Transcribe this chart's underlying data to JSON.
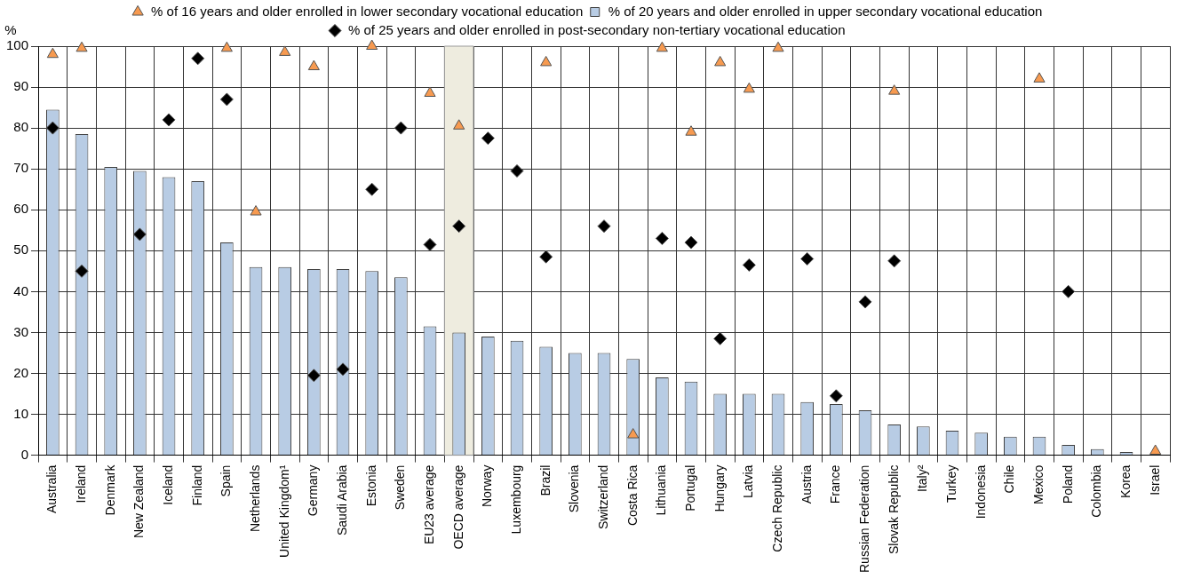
{
  "chart_data": {
    "type": "bar",
    "ylabel": "%",
    "categories": [
      "Australia",
      "Ireland",
      "Denmark",
      "New Zealand",
      "Iceland",
      "Finland",
      "Spain",
      "Netherlands",
      "United Kingdom¹",
      "Germany",
      "Saudi Arabia",
      "Estonia",
      "Sweden",
      "EU23 average",
      "OECD average",
      "Norway",
      "Luxembourg",
      "Brazil",
      "Slovenia",
      "Switzerland",
      "Costa Rica",
      "Lithuania",
      "Portugal",
      "Hungary",
      "Latvia",
      "Czech Republic",
      "Austria",
      "France",
      "Russian Federation",
      "Slovak Republic",
      "Italy²",
      "Turkey",
      "Indonesia",
      "Chile",
      "Mexico",
      "Poland",
      "Colombia",
      "Korea",
      "Israel"
    ],
    "series": [
      {
        "name": "% of 16 years and older enrolled in lower secondary vocational education",
        "type": "scatter",
        "marker": "triangle",
        "color": "#f79a50",
        "values": [
          98,
          99.5,
          null,
          null,
          null,
          null,
          99.5,
          59.5,
          98.5,
          95,
          null,
          100,
          null,
          88.5,
          80.5,
          null,
          null,
          96,
          null,
          null,
          5,
          99.5,
          79,
          96,
          89.5,
          99.5,
          null,
          null,
          null,
          89,
          null,
          null,
          null,
          null,
          92,
          null,
          null,
          null,
          1
        ]
      },
      {
        "name": "% of 20 years and older enrolled in upper secondary vocational education",
        "color": "#b8cce4",
        "values": [
          84.5,
          78.5,
          70.5,
          69.5,
          68,
          67,
          52,
          46,
          46,
          45.5,
          45.5,
          45,
          43.5,
          31.5,
          30,
          29,
          28,
          26.5,
          25,
          25,
          23.5,
          19,
          18,
          15,
          15,
          15,
          13,
          12.5,
          11,
          7.5,
          7,
          6,
          5.5,
          4.5,
          4.5,
          2.5,
          1.5,
          0.8,
          null
        ]
      },
      {
        "name": "% of 25 years and older enrolled in post-secondary non-tertiary vocational education",
        "type": "scatter",
        "marker": "diamond",
        "color": "#000000",
        "values": [
          80,
          45,
          null,
          54,
          82,
          97,
          87,
          null,
          null,
          19.5,
          21,
          65,
          80,
          51.5,
          56,
          77.5,
          69.5,
          48.5,
          null,
          56,
          null,
          53,
          52,
          28.5,
          46.5,
          null,
          48,
          14.5,
          37.5,
          47.5,
          null,
          null,
          null,
          null,
          null,
          40,
          null,
          null,
          null
        ]
      }
    ],
    "bands": [
      {
        "axis": "x",
        "from": "OECD average",
        "to": "OECD average",
        "color": "#eeecdf"
      }
    ],
    "ylim": [
      0,
      100
    ],
    "yticks": [
      0,
      10,
      20,
      30,
      40,
      50,
      60,
      70,
      80,
      90,
      100
    ],
    "grid": true,
    "legend": "top"
  }
}
